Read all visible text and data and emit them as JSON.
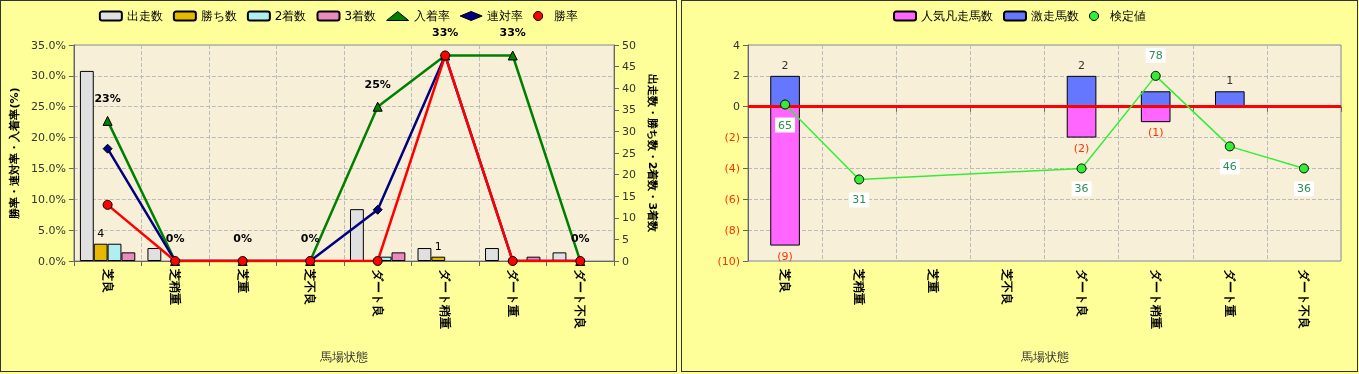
{
  "chart_data": [
    {
      "type": "bar",
      "xlabel": "馬場状態",
      "ylabel": "勝率・連対率・入着率(%)",
      "y2label": "出走数・勝ち数・2着数・3着数",
      "categories": [
        "芝良",
        "芝稍重",
        "芝重",
        "芝不良",
        "ダート良",
        "ダート稍重",
        "ダート重",
        "ダート不良"
      ],
      "series": [
        {
          "name": "出走数",
          "color": "#e0e0e0",
          "axis": "y2",
          "values": [
            44,
            3,
            0,
            0,
            12,
            3,
            3,
            2
          ]
        },
        {
          "name": "勝ち数",
          "color": "#e6b800",
          "axis": "y2",
          "values": [
            4,
            0,
            0,
            0,
            0,
            1,
            0,
            0
          ],
          "value_labels": [
            "4",
            null,
            null,
            null,
            null,
            "1",
            null,
            null
          ]
        },
        {
          "name": "2着数",
          "color": "#b0eef0",
          "axis": "y2",
          "values": [
            4,
            0,
            0,
            0,
            1,
            0,
            0,
            0
          ]
        },
        {
          "name": "3着数",
          "color": "#e88cc0",
          "axis": "y2",
          "values": [
            2,
            0,
            0,
            0,
            2,
            0,
            1,
            0
          ]
        },
        {
          "name": "入着率",
          "type": "line",
          "color": "#008000",
          "marker": "triangle",
          "values": [
            22.7,
            0,
            0,
            0,
            25,
            33.3,
            33.3,
            0
          ],
          "value_labels": [
            "23%",
            "0%",
            "0%",
            "0%",
            "25%",
            "33%",
            "33%",
            "0%"
          ]
        },
        {
          "name": "連対率",
          "type": "line",
          "color": "#000080",
          "marker": "diamond",
          "values": [
            18.2,
            0,
            0,
            0,
            8.3,
            33.3,
            0,
            0
          ]
        },
        {
          "name": "勝率",
          "type": "line",
          "color": "#ff0000",
          "marker": "circle",
          "values": [
            9.1,
            0,
            0,
            0,
            0,
            33.3,
            0,
            0
          ]
        }
      ],
      "ylim": [
        0,
        35
      ],
      "yticks": [
        {
          "value": 0,
          "label": "0.0%"
        },
        {
          "value": 5,
          "label": "5.0%"
        },
        {
          "value": 10,
          "label": "10.0%"
        },
        {
          "value": 15,
          "label": "15.0%"
        },
        {
          "value": 20,
          "label": "20.0%"
        },
        {
          "value": 25,
          "label": "25.0%"
        },
        {
          "value": 30,
          "label": "30.0%"
        },
        {
          "value": 35,
          "label": "35.0%"
        }
      ],
      "y2lim": [
        0,
        50
      ],
      "y2ticks": [
        0,
        5,
        10,
        15,
        20,
        25,
        30,
        35,
        40,
        45,
        50
      ],
      "grid": true,
      "legend": "top"
    },
    {
      "type": "bar",
      "xlabel": "馬場状態",
      "categories": [
        "芝良",
        "芝稍重",
        "芝重",
        "芝不良",
        "ダート良",
        "ダート稍重",
        "ダート重",
        "ダート不良"
      ],
      "stacked": true,
      "series": [
        {
          "name": "人気凡走馬数",
          "color": "#ff66ff",
          "values": [
            -9,
            0,
            0,
            0,
            -2,
            -1,
            0,
            0
          ],
          "value_labels": [
            "(9)",
            null,
            null,
            null,
            "(2)",
            "(1)",
            null,
            null
          ]
        },
        {
          "name": "激走馬数",
          "color": "#6677ff",
          "values": [
            2,
            0,
            0,
            0,
            2,
            1,
            1,
            0
          ],
          "value_labels": [
            "2",
            null,
            null,
            null,
            "2",
            null,
            "1",
            null
          ]
        },
        {
          "name": "検定値",
          "type": "line",
          "axis": "y2",
          "color": "#33ee33",
          "marker": "circle",
          "values": [
            65,
            31,
            null,
            null,
            36,
            78,
            46,
            36
          ],
          "value_labels": [
            "65",
            "31",
            null,
            null,
            "36",
            "78",
            "46",
            "36"
          ]
        }
      ],
      "ylim": [
        -10,
        4
      ],
      "yticks": [
        {
          "value": -10,
          "label": "(10)"
        },
        {
          "value": -8,
          "label": "(8)"
        },
        {
          "value": -6,
          "label": "(6)"
        },
        {
          "value": -4,
          "label": "(4)"
        },
        {
          "value": -2,
          "label": "(2)"
        },
        0,
        2,
        4
      ],
      "y2lim": [
        -6,
        92
      ],
      "ref_lines": [
        {
          "axis": "y",
          "value": 0,
          "color": "#ff0000"
        }
      ],
      "grid": true,
      "legend": "top"
    }
  ]
}
